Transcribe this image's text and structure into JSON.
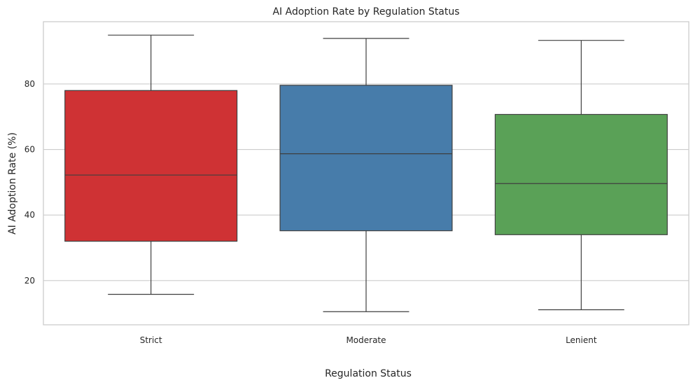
{
  "chart_data": {
    "type": "box",
    "title": "AI Adoption Rate by Regulation Status",
    "xlabel": "Regulation Status",
    "ylabel": "AI Adoption Rate (%)",
    "ylim": [
      6.5,
      99
    ],
    "yticks": [
      20,
      40,
      60,
      80
    ],
    "grid": "horizontal",
    "categories": [
      "Strict",
      "Moderate",
      "Lenient"
    ],
    "boxes": [
      {
        "category": "Strict",
        "min": 15.8,
        "q1": 32.0,
        "median": 52.2,
        "q3": 78.0,
        "max": 94.9,
        "color": "#CF3234"
      },
      {
        "category": "Moderate",
        "min": 10.5,
        "q1": 35.2,
        "median": 58.7,
        "q3": 79.6,
        "max": 93.9,
        "color": "#477CAA"
      },
      {
        "category": "Lenient",
        "min": 11.1,
        "q1": 34.0,
        "median": 49.6,
        "q3": 70.7,
        "max": 93.3,
        "color": "#5AA157"
      }
    ]
  }
}
